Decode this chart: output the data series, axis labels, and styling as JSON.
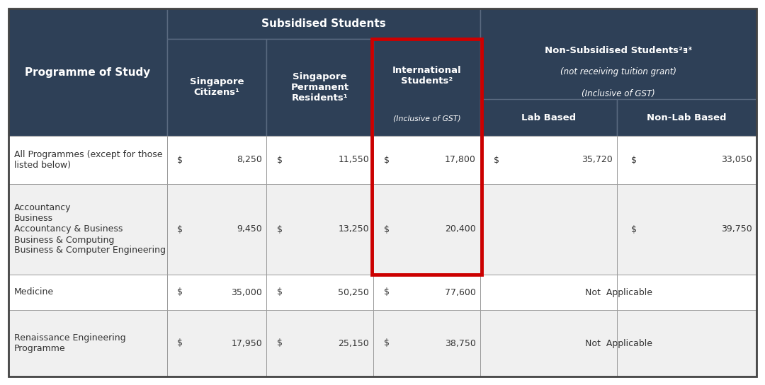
{
  "header_bg": "#2e4057",
  "header_text_color": "#ffffff",
  "row_bg_light": "#f0f0f0",
  "row_bg_white": "#ffffff",
  "border_color": "#888888",
  "outer_border_color": "#444444",
  "red_color": "#cc0000",
  "body_text_color": "#333333",
  "col1_header": "Programme of Study",
  "subsidised_header": "Subsidised Students",
  "rows": [
    {
      "programme": "All Programmes (except for those\nlisted below)",
      "sc": "8,250",
      "spr": "11,550",
      "intl": "17,800",
      "lab": "35,720",
      "nonlab": "33,050",
      "not_applicable": false
    },
    {
      "programme": "Accountancy\nBusiness\nAccountancy & Business\nBusiness & Computing\nBusiness & Computer Engineering",
      "sc": "9,450",
      "spr": "13,250",
      "intl": "20,400",
      "lab": "",
      "nonlab": "39,750",
      "not_applicable": false
    },
    {
      "programme": "Medicine",
      "sc": "35,000",
      "spr": "50,250",
      "intl": "77,600",
      "lab": "",
      "nonlab": "",
      "not_applicable": true
    },
    {
      "programme": "Renaissance Engineering\nProgramme",
      "sc": "17,950",
      "spr": "25,150",
      "intl": "38,750",
      "lab": "",
      "nonlab": "",
      "not_applicable": true
    }
  ]
}
